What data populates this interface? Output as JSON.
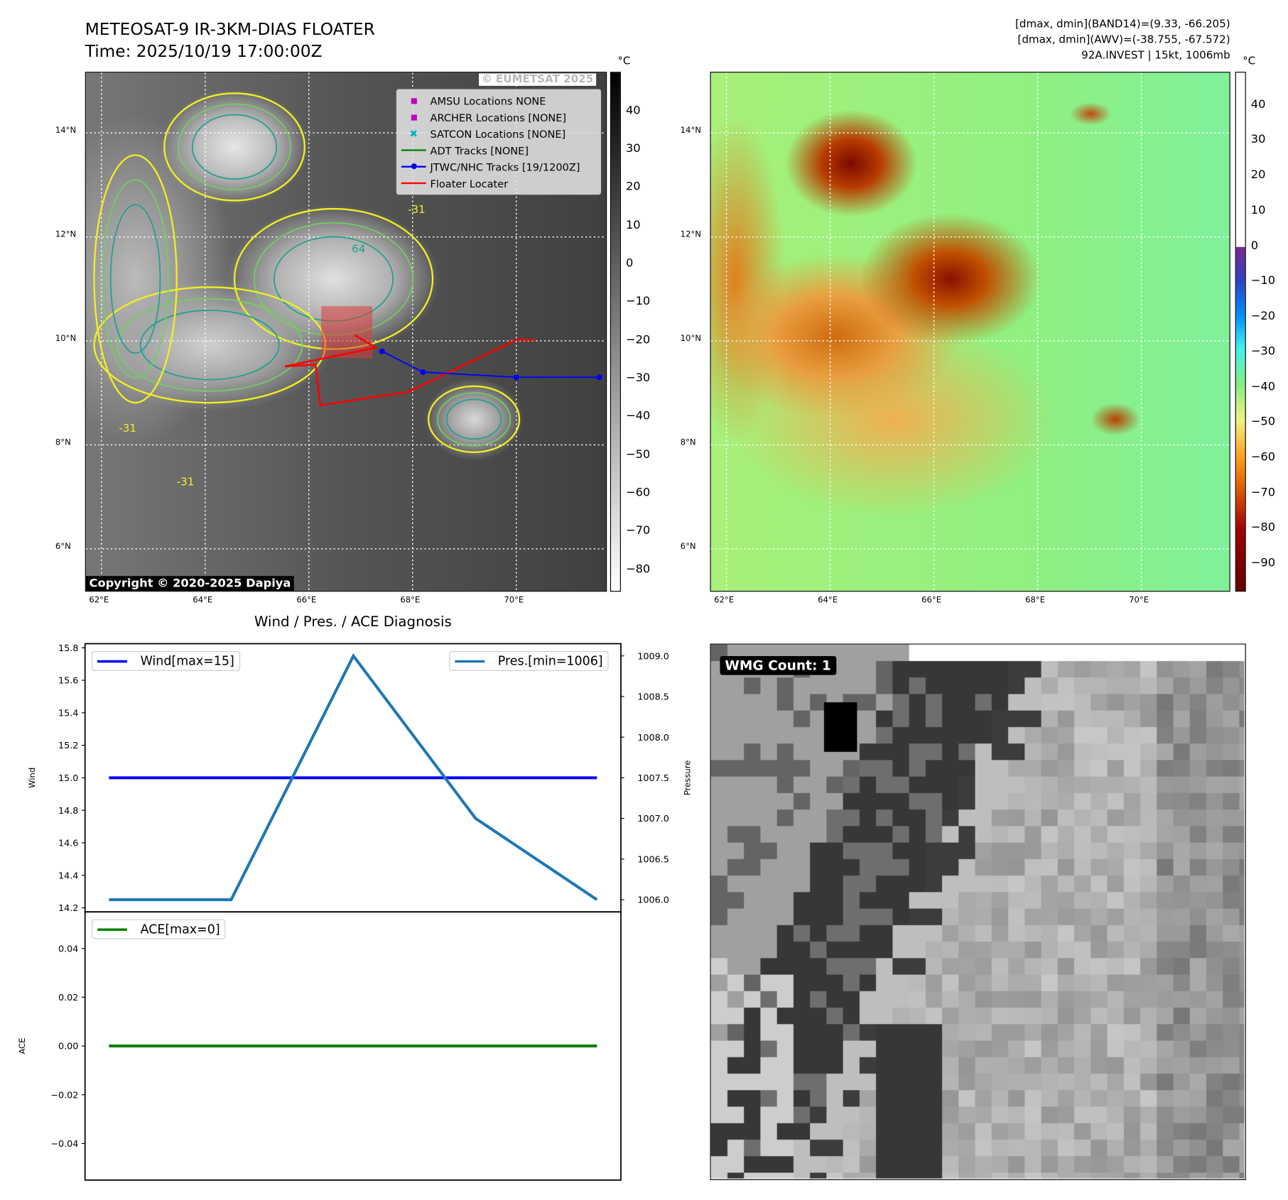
{
  "header": {
    "title_line1": "METEOSAT-9 IR-3KM-DIAS FLOATER",
    "title_line2": "Time: 2025/10/19 17:00:00Z",
    "info_line1": "[dmax, dmin](BAND14)=(9.33, -66.205)",
    "info_line2": "[dmax, dmin](AWV)=(-38.755, -67.572)",
    "info_line3": "92A.INVEST | 15kt, 1006mb"
  },
  "map": {
    "lon_ticks": [
      "62°E",
      "64°E",
      "66°E",
      "68°E",
      "70°E"
    ],
    "lon_values": [
      62,
      64,
      66,
      68,
      70
    ],
    "lat_ticks": [
      "14°N",
      "12°N",
      "10°N",
      "8°N",
      "6°N"
    ],
    "lat_values": [
      14,
      12,
      10,
      8,
      6
    ],
    "lon_range": [
      61.7,
      71.73
    ],
    "lat_range": [
      5.16,
      15.16
    ],
    "copyright": "Copyright © 2020-2025 Dapiya",
    "watermark": "© EUMETSAT 2025",
    "contour_labels": [
      "-31",
      "64"
    ],
    "jtwc_track": [
      [
        67.41,
        9.8
      ],
      [
        68.2,
        9.4
      ],
      [
        70.0,
        9.3
      ],
      [
        71.6,
        9.3
      ]
    ],
    "floater_locater": [
      [
        70.35,
        10.02
      ],
      [
        70.0,
        10.02
      ],
      [
        67.92,
        9.02
      ],
      [
        66.22,
        8.76
      ],
      [
        66.13,
        9.54
      ],
      [
        65.54,
        9.51
      ],
      [
        67.29,
        9.87
      ],
      [
        66.89,
        10.11
      ]
    ]
  },
  "legend": {
    "items": [
      {
        "label": "AMSU Locations NONE",
        "symbol": "square",
        "color": "#c000c0"
      },
      {
        "label": "ARCHER Locations [NONE]",
        "symbol": "square",
        "color": "#c000c0"
      },
      {
        "label": "SATCON Locations [NONE]",
        "symbol": "x",
        "color": "#00b5b5"
      },
      {
        "label": "ADT Tracks [NONE]",
        "symbol": "line",
        "color": "#008000"
      },
      {
        "label": "JTWC/NHC Tracks [19/1200Z]",
        "symbol": "line-dot",
        "color": "#0000ff"
      },
      {
        "label": "Floater Locater",
        "symbol": "line",
        "color": "#ff0000"
      }
    ]
  },
  "colorbar_ir": {
    "unit": "°C",
    "ticks": [
      "40",
      "30",
      "20",
      "10",
      "0",
      "−10",
      "−20",
      "−30",
      "−40",
      "−50",
      "−60",
      "−70",
      "−80"
    ],
    "values": [
      40,
      30,
      20,
      10,
      0,
      -10,
      -20,
      -30,
      -40,
      -50,
      -60,
      -70,
      -80
    ],
    "range": [
      -85.7,
      50.3
    ]
  },
  "colorbar_awv": {
    "unit": "°C",
    "ticks": [
      "40",
      "30",
      "20",
      "10",
      "0",
      "−10",
      "−20",
      "−30",
      "−40",
      "−50",
      "−60",
      "−70",
      "−80",
      "−90"
    ],
    "values": [
      40,
      30,
      20,
      10,
      0,
      -10,
      -20,
      -30,
      -40,
      -50,
      -60,
      -70,
      -80,
      -90
    ],
    "range": [
      -97.9,
      49.5
    ]
  },
  "diagnosis": {
    "title": "Wind / Pres. / ACE Diagnosis",
    "wind_ylabel": "Wind",
    "pres_ylabel": "Pressure",
    "ace_ylabel": "ACE",
    "wind_legend": "Wind[max=15]",
    "pres_legend": "Pres.[min=1006]",
    "ace_legend": "ACE[max=0]",
    "wind_ticks": [
      "15.8",
      "15.6",
      "15.4",
      "15.2",
      "15.0",
      "14.8",
      "14.6",
      "14.4",
      "14.2"
    ],
    "wind_tick_values": [
      15.8,
      15.6,
      15.4,
      15.2,
      15.0,
      14.8,
      14.6,
      14.4,
      14.2
    ],
    "wind_ylim": [
      14.175,
      15.825
    ],
    "pres_ticks": [
      "1009.0",
      "1008.5",
      "1008.0",
      "1007.5",
      "1007.0",
      "1006.5",
      "1006.0"
    ],
    "pres_tick_values": [
      1009.0,
      1008.5,
      1008.0,
      1007.5,
      1007.0,
      1006.5,
      1006.0
    ],
    "pres_ylim": [
      1005.85,
      1009.15
    ],
    "ace_ticks": [
      "0.04",
      "0.02",
      "0.00",
      "−0.02",
      "−0.04"
    ],
    "ace_tick_values": [
      0.04,
      0.02,
      0.0,
      -0.02,
      -0.04
    ],
    "ace_ylim": [
      -0.055,
      0.055
    ],
    "wind_values": [
      15,
      15,
      15,
      15,
      15
    ],
    "pres_values": [
      1006,
      1006,
      1009,
      1007,
      1006
    ],
    "ace_values": [
      0,
      0,
      0,
      0,
      0
    ],
    "colors": {
      "wind": "#0000ff",
      "pres": "#1f77b4",
      "ace": "#008000"
    }
  },
  "wmg": {
    "label": "WMG Count: 1"
  }
}
